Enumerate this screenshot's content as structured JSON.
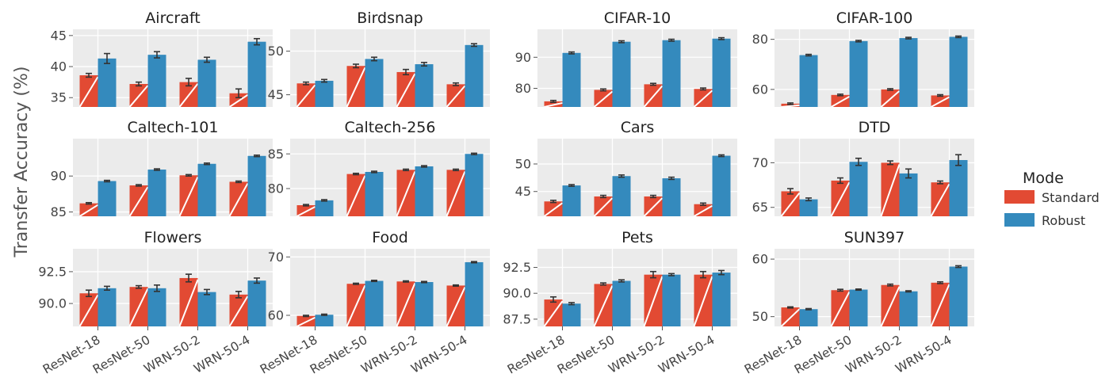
{
  "chart_data": {
    "type": "bar",
    "ylabel": "Transfer Accuracy (%)",
    "categories": [
      "ResNet-18",
      "ResNet-50",
      "WRN-50-2",
      "WRN-50-4"
    ],
    "legend": {
      "title": "Mode",
      "position": "right",
      "entries": [
        {
          "name": "Standard",
          "color": "#e24a33"
        },
        {
          "name": "Robust",
          "color": "#348abd"
        }
      ]
    },
    "panels": [
      {
        "title": "Aircraft",
        "ylim": [
          33.5,
          46
        ],
        "yticks": [
          35,
          40,
          45
        ],
        "ytick_labels": [
          "35",
          "40",
          "45"
        ],
        "series": [
          {
            "name": "Standard",
            "values": [
              38.6,
              37.2,
              37.5,
              35.7
            ],
            "errors": [
              0.3,
              0.3,
              0.6,
              0.7
            ]
          },
          {
            "name": "Robust",
            "values": [
              41.3,
              41.9,
              41.1,
              44.0
            ],
            "errors": [
              0.8,
              0.5,
              0.4,
              0.5
            ]
          }
        ]
      },
      {
        "title": "Birdsnap",
        "ylim": [
          43.6,
          52.5
        ],
        "yticks": [
          45,
          50
        ],
        "ytick_labels": [
          "45",
          "50"
        ],
        "series": [
          {
            "name": "Standard",
            "values": [
              46.3,
              48.3,
              47.6,
              46.2
            ],
            "errors": [
              0.15,
              0.2,
              0.3,
              0.15
            ]
          },
          {
            "name": "Robust",
            "values": [
              46.6,
              49.1,
              48.5,
              50.7
            ],
            "errors": [
              0.15,
              0.2,
              0.2,
              0.15
            ]
          }
        ]
      },
      {
        "title": "CIFAR-10",
        "ylim": [
          74,
          99
        ],
        "yticks": [
          80,
          90
        ],
        "ytick_labels": [
          "80",
          "90"
        ],
        "series": [
          {
            "name": "Standard",
            "values": [
              75.8,
              79.5,
              81.3,
              79.8
            ],
            "errors": [
              0.3,
              0.3,
              0.3,
              0.3
            ]
          },
          {
            "name": "Robust",
            "values": [
              91.4,
              95.0,
              95.5,
              96.0
            ],
            "errors": [
              0.3,
              0.3,
              0.3,
              0.3
            ]
          }
        ]
      },
      {
        "title": "CIFAR-100",
        "ylim": [
          53,
          84
        ],
        "yticks": [
          60,
          80
        ],
        "ytick_labels": [
          "60",
          "80"
        ],
        "series": [
          {
            "name": "Standard",
            "values": [
              54.3,
              57.8,
              60.0,
              57.6
            ],
            "errors": [
              0.3,
              0.3,
              0.3,
              0.3
            ]
          },
          {
            "name": "Robust",
            "values": [
              73.7,
              79.3,
              80.5,
              81.0
            ],
            "errors": [
              0.3,
              0.3,
              0.3,
              0.3
            ]
          }
        ]
      },
      {
        "title": "Caltech-101",
        "ylim": [
          84.4,
          95.2
        ],
        "yticks": [
          85,
          90
        ],
        "ytick_labels": [
          "85",
          "90"
        ],
        "series": [
          {
            "name": "Standard",
            "values": [
              86.2,
              88.7,
              90.1,
              89.2
            ],
            "errors": [
              0.1,
              0.1,
              0.1,
              0.1
            ]
          },
          {
            "name": "Robust",
            "values": [
              89.3,
              90.9,
              91.7,
              92.8
            ],
            "errors": [
              0.1,
              0.1,
              0.1,
              0.1
            ]
          }
        ]
      },
      {
        "title": "Caltech-256",
        "ylim": [
          76,
          87.2
        ],
        "yticks": [
          80,
          85
        ],
        "ytick_labels": [
          "80",
          "85"
        ],
        "series": [
          {
            "name": "Standard",
            "values": [
              77.6,
              82.1,
              82.7,
              82.7
            ],
            "errors": [
              0.1,
              0.1,
              0.1,
              0.1
            ]
          },
          {
            "name": "Robust",
            "values": [
              78.3,
              82.4,
              83.2,
              85.0
            ],
            "errors": [
              0.1,
              0.1,
              0.1,
              0.1
            ]
          }
        ]
      },
      {
        "title": "Cars",
        "ylim": [
          40.5,
          54.6
        ],
        "yticks": [
          45,
          50
        ],
        "ytick_labels": [
          "45",
          "50"
        ],
        "series": [
          {
            "name": "Standard",
            "values": [
              43.2,
              44.1,
              44.1,
              42.7
            ],
            "errors": [
              0.2,
              0.2,
              0.2,
              0.2
            ]
          },
          {
            "name": "Robust",
            "values": [
              46.1,
              47.8,
              47.4,
              51.5
            ],
            "errors": [
              0.15,
              0.2,
              0.2,
              0.15
            ]
          }
        ]
      },
      {
        "title": "DTD",
        "ylim": [
          64,
          72.7
        ],
        "yticks": [
          65,
          70
        ],
        "ytick_labels": [
          "65",
          "70"
        ],
        "series": [
          {
            "name": "Standard",
            "values": [
              66.8,
              68.0,
              70.0,
              67.8
            ],
            "errors": [
              0.3,
              0.3,
              0.2,
              0.15
            ]
          },
          {
            "name": "Robust",
            "values": [
              65.9,
              70.1,
              68.8,
              70.3
            ],
            "errors": [
              0.15,
              0.4,
              0.5,
              0.6
            ]
          }
        ]
      },
      {
        "title": "Flowers",
        "ylim": [
          88.2,
          94.3
        ],
        "yticks": [
          90.0,
          92.5
        ],
        "ytick_labels": [
          "90.0",
          "92.5"
        ],
        "series": [
          {
            "name": "Standard",
            "values": [
              90.8,
              91.3,
              92.0,
              90.7
            ],
            "errors": [
              0.25,
              0.1,
              0.3,
              0.25
            ]
          },
          {
            "name": "Robust",
            "values": [
              91.2,
              91.2,
              90.9,
              91.8
            ],
            "errors": [
              0.15,
              0.25,
              0.2,
              0.2
            ]
          }
        ]
      },
      {
        "title": "Food",
        "ylim": [
          58.1,
          71.4
        ],
        "yticks": [
          60,
          70
        ],
        "ytick_labels": [
          "60",
          "70"
        ],
        "series": [
          {
            "name": "Standard",
            "values": [
              59.9,
              65.4,
              65.8,
              65.1
            ],
            "errors": [
              0.1,
              0.1,
              0.1,
              0.1
            ]
          },
          {
            "name": "Robust",
            "values": [
              60.1,
              65.9,
              65.7,
              69.1
            ],
            "errors": [
              0.1,
              0.1,
              0.1,
              0.1
            ]
          }
        ]
      },
      {
        "title": "Pets",
        "ylim": [
          86.8,
          94.3
        ],
        "yticks": [
          87.5,
          90.0,
          92.5
        ],
        "ytick_labels": [
          "87.5",
          "90.0",
          "92.5"
        ],
        "series": [
          {
            "name": "Standard",
            "values": [
              89.4,
              90.9,
              91.8,
              91.8
            ],
            "errors": [
              0.25,
              0.1,
              0.3,
              0.3
            ]
          },
          {
            "name": "Robust",
            "values": [
              89.0,
              91.2,
              91.8,
              92.0
            ],
            "errors": [
              0.1,
              0.1,
              0.1,
              0.2
            ]
          }
        ]
      },
      {
        "title": "SUN397",
        "ylim": [
          48.3,
          61.8
        ],
        "yticks": [
          50,
          60
        ],
        "ytick_labels": [
          "50",
          "60"
        ],
        "series": [
          {
            "name": "Standard",
            "values": [
              51.6,
              54.6,
              55.5,
              55.9
            ],
            "errors": [
              0.1,
              0.15,
              0.15,
              0.15
            ]
          },
          {
            "name": "Robust",
            "values": [
              51.3,
              54.7,
              54.4,
              58.7
            ],
            "errors": [
              0.1,
              0.1,
              0.1,
              0.15
            ]
          }
        ]
      }
    ]
  }
}
